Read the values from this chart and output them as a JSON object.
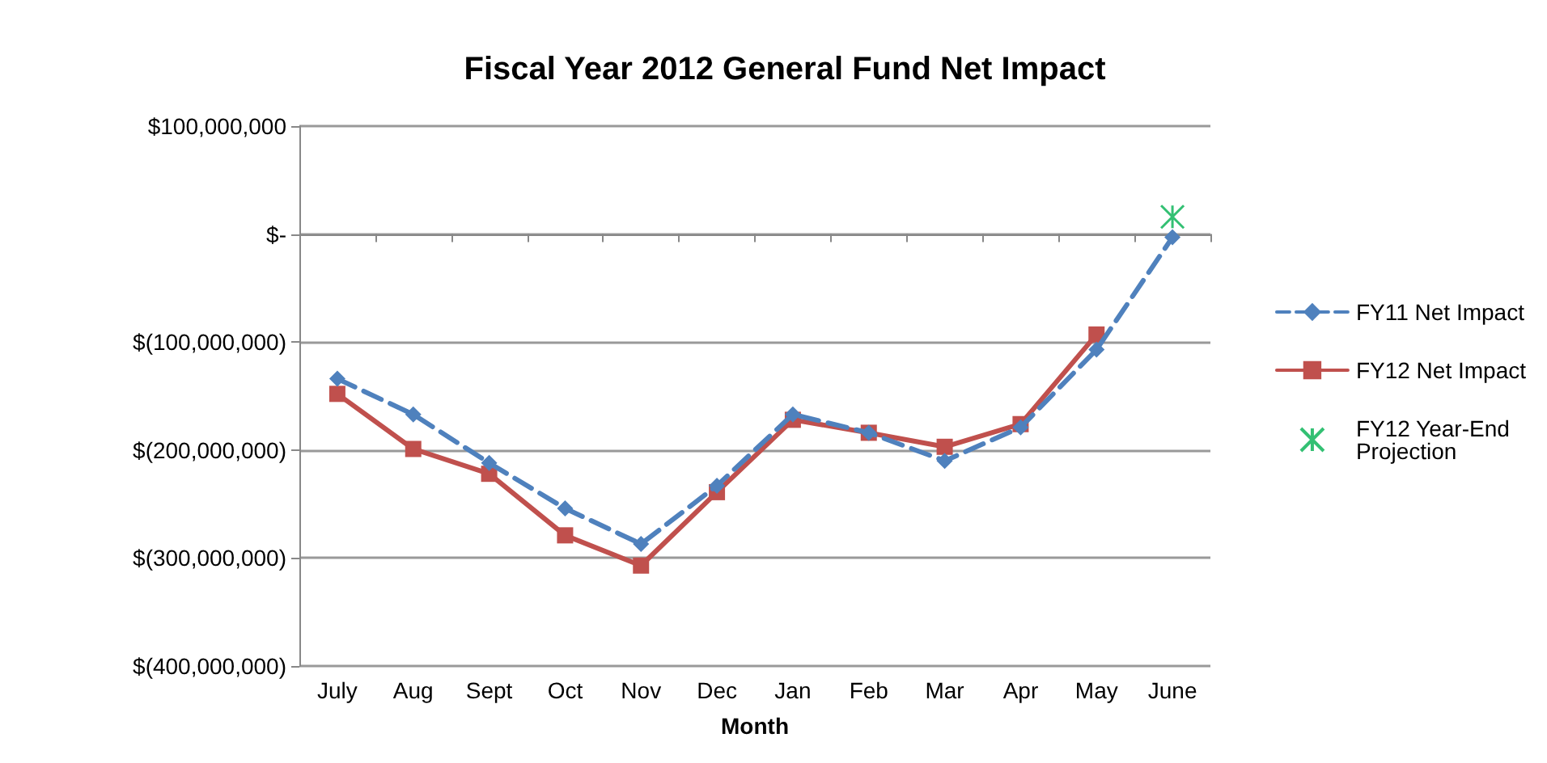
{
  "chart_data": {
    "type": "line",
    "title": "Fiscal Year 2012 General Fund Net Impact",
    "xlabel": "Month",
    "categories": [
      "July",
      "Aug",
      "Sept",
      "Oct",
      "Nov",
      "Dec",
      "Jan",
      "Feb",
      "Mar",
      "Apr",
      "May",
      "June"
    ],
    "series": [
      {
        "name": "FY11 Net Impact",
        "color": "#4f81bd",
        "marker": "diamond",
        "line_style": "dashed",
        "values": [
          -134000000,
          -167000000,
          -212000000,
          -254000000,
          -287000000,
          -233000000,
          -167000000,
          -184000000,
          -210000000,
          -179000000,
          -107000000,
          -3000000
        ]
      },
      {
        "name": "FY12 Net Impact",
        "color": "#c0504d",
        "marker": "square",
        "line_style": "solid",
        "values": [
          -148000000,
          -199000000,
          -222000000,
          -279000000,
          -307000000,
          -239000000,
          -172000000,
          -184000000,
          -197000000,
          -176000000,
          -93000000,
          null
        ]
      },
      {
        "name": "FY12 Year-End Projection",
        "type": "scatter",
        "color": "#00b050",
        "marker": "cross",
        "values": [
          null,
          null,
          null,
          null,
          null,
          null,
          null,
          null,
          null,
          null,
          null,
          16000000
        ]
      }
    ],
    "ylim": [
      -400000000,
      100000000
    ],
    "yticks": [
      {
        "value": -400000000,
        "label": "$(400,000,000)"
      },
      {
        "value": -300000000,
        "label": "$(300,000,000)"
      },
      {
        "value": -200000000,
        "label": "$(200,000,000)"
      },
      {
        "value": -100000000,
        "label": "$(100,000,000)"
      },
      {
        "value": 0,
        "label": "$-"
      },
      {
        "value": 100000000,
        "label": "$100,000,000"
      }
    ],
    "grid": "y",
    "legend": "right"
  }
}
